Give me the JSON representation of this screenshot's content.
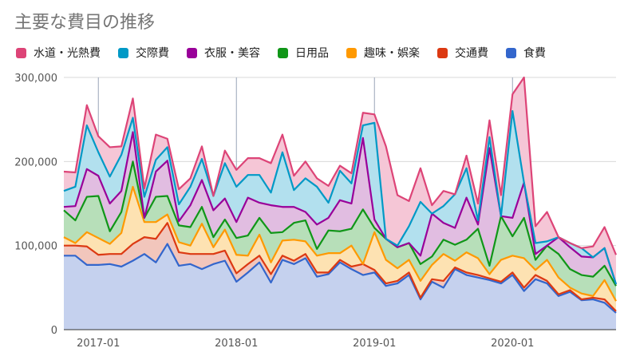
{
  "chart_data": {
    "type": "area",
    "stacked": true,
    "title": "主要な費目の推移",
    "legend_position": "top",
    "grid": true,
    "ylim": [
      0,
      300000
    ],
    "y_ticks": [
      "0",
      "100,000",
      "200,000",
      "300,000"
    ],
    "y_tick_values": [
      0,
      100000,
      200000,
      300000
    ],
    "x_tick_labels": [
      "2017-01",
      "2018-01",
      "2019-01",
      "2020-01"
    ],
    "x_tick_indices": [
      3,
      15,
      27,
      39
    ],
    "x": [
      "2016-10",
      "2016-11",
      "2016-12",
      "2017-01",
      "2017-02",
      "2017-03",
      "2017-04",
      "2017-05",
      "2017-06",
      "2017-07",
      "2017-08",
      "2017-09",
      "2017-10",
      "2017-11",
      "2017-12",
      "2018-01",
      "2018-02",
      "2018-03",
      "2018-04",
      "2018-05",
      "2018-06",
      "2018-07",
      "2018-08",
      "2018-09",
      "2018-10",
      "2018-11",
      "2018-12",
      "2019-01",
      "2019-02",
      "2019-03",
      "2019-04",
      "2019-05",
      "2019-06",
      "2019-07",
      "2019-08",
      "2019-09",
      "2019-10",
      "2019-11",
      "2019-12",
      "2020-01",
      "2020-02",
      "2020-03",
      "2020-04",
      "2020-05",
      "2020-06",
      "2020-07",
      "2020-08",
      "2020-09",
      "2020-10"
    ],
    "series": [
      {
        "name": "食費",
        "color": "#3366cc",
        "fill": "#c5d1ee",
        "values": [
          88000,
          88000,
          77000,
          77000,
          78000,
          75000,
          82000,
          90000,
          80000,
          102000,
          76000,
          78000,
          72000,
          78000,
          82000,
          57000,
          68000,
          80000,
          56000,
          83000,
          78000,
          85000,
          63000,
          66000,
          80000,
          72000,
          65000,
          68000,
          52000,
          55000,
          65000,
          36000,
          57000,
          50000,
          72000,
          65000,
          62000,
          59000,
          55000,
          65000,
          46000,
          60000,
          55000,
          40000,
          45000,
          35000,
          36000,
          32000,
          20000
        ]
      },
      {
        "name": "交通費",
        "color": "#dc3912",
        "fill": "#f2c6bc",
        "values": [
          12000,
          12000,
          22000,
          12000,
          12000,
          15000,
          20000,
          20000,
          28000,
          25000,
          16000,
          12000,
          18000,
          12000,
          12000,
          10000,
          10000,
          8000,
          10000,
          5000,
          4000,
          5000,
          5000,
          2000,
          3000,
          3000,
          13000,
          3000,
          3000,
          3000,
          3000,
          2000,
          3000,
          8000,
          2000,
          3000,
          3000,
          2000,
          2000,
          3000,
          4000,
          5000,
          3000,
          2000,
          2000,
          1000,
          2000,
          4000,
          2000
        ]
      },
      {
        "name": "趣味・娯楽",
        "color": "#ff9900",
        "fill": "#fde2b2",
        "values": [
          10000,
          3000,
          17000,
          20000,
          12000,
          25000,
          68000,
          18000,
          20000,
          10000,
          12000,
          10000,
          36000,
          8000,
          25000,
          22000,
          10000,
          25000,
          14000,
          18000,
          25000,
          15000,
          20000,
          23000,
          8000,
          25000,
          0,
          45000,
          28000,
          15000,
          15000,
          20000,
          17000,
          32000,
          8000,
          24000,
          20000,
          5000,
          26000,
          20000,
          35000,
          6000,
          25000,
          20000,
          3000,
          7000,
          2000,
          23000,
          12000
        ]
      },
      {
        "name": "日用品",
        "color": "#109618",
        "fill": "#b7dfb9",
        "values": [
          32000,
          27000,
          42000,
          50000,
          15000,
          25000,
          30000,
          5000,
          30000,
          22000,
          20000,
          22000,
          20000,
          12000,
          12000,
          20000,
          24000,
          20000,
          35000,
          10000,
          20000,
          25000,
          8000,
          27000,
          26000,
          20000,
          65000,
          5000,
          25000,
          25000,
          20000,
          20000,
          10000,
          17000,
          19000,
          15000,
          35000,
          10000,
          52000,
          23000,
          48000,
          12000,
          17000,
          28000,
          22000,
          22000,
          23000,
          17000,
          18000
        ]
      },
      {
        "name": "衣服・美容",
        "color": "#990099",
        "fill": "#e1bde1",
        "values": [
          4000,
          17000,
          33000,
          24000,
          33000,
          25000,
          35000,
          0,
          30000,
          42000,
          5000,
          26000,
          32000,
          32000,
          25000,
          19000,
          45000,
          18000,
          33000,
          30000,
          19000,
          10000,
          29000,
          15000,
          37000,
          30000,
          85000,
          10000,
          0,
          0,
          0,
          10000,
          51000,
          20000,
          20000,
          50000,
          5000,
          140000,
          0,
          22000,
          42000,
          7000,
          0,
          20000,
          26000,
          22000,
          23000,
          21000,
          2000
        ]
      },
      {
        "name": "交際費",
        "color": "#0099c6",
        "fill": "#b2e0ee",
        "values": [
          19000,
          23000,
          52000,
          28000,
          32000,
          43000,
          17000,
          25000,
          14000,
          16000,
          20000,
          22000,
          25000,
          17000,
          42000,
          42000,
          27000,
          33000,
          15000,
          65000,
          20000,
          40000,
          45000,
          18000,
          35000,
          24000,
          15000,
          115000,
          0,
          2000,
          20000,
          64000,
          0,
          20000,
          40000,
          35000,
          5000,
          13000,
          0,
          127000,
          0,
          13000,
          5000,
          0,
          5000,
          10000,
          0,
          0,
          0
        ]
      },
      {
        "name": "水道・光熱費",
        "color": "#dd4477",
        "fill": "#f5c6d6",
        "values": [
          23000,
          17000,
          24000,
          19000,
          35000,
          10000,
          23000,
          10000,
          30000,
          10000,
          18000,
          10000,
          15000,
          0,
          15000,
          20000,
          20000,
          20000,
          35000,
          21000,
          17000,
          20000,
          10000,
          20000,
          6000,
          12000,
          15000,
          10000,
          110000,
          60000,
          30000,
          40000,
          10000,
          18000,
          0,
          15000,
          20000,
          20000,
          25000,
          20000,
          125000,
          20000,
          35000,
          0,
          0,
          0,
          13000,
          25000,
          35000
        ]
      }
    ]
  }
}
